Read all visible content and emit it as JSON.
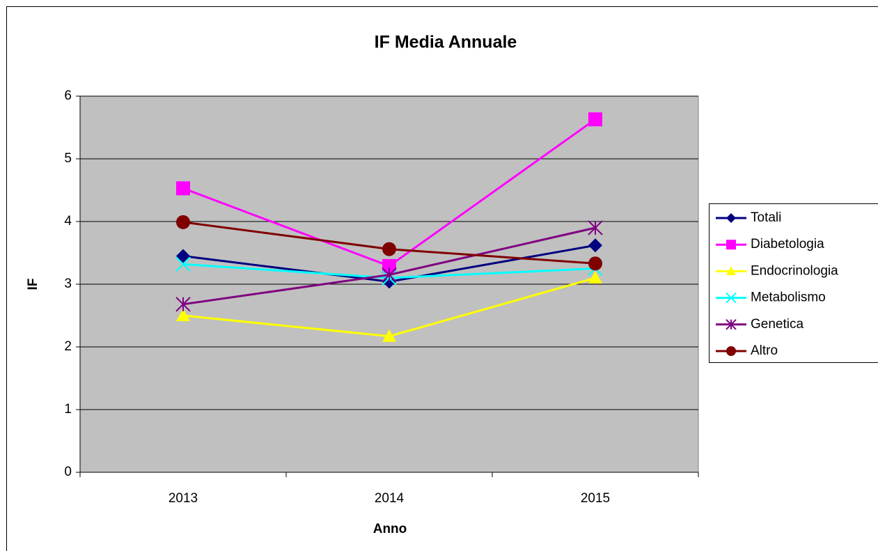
{
  "chart_data": {
    "type": "line",
    "title": "IF Media Annuale",
    "x_label": "Anno",
    "y_label": "IF",
    "categories": [
      "2013",
      "2014",
      "2015"
    ],
    "series": [
      {
        "name": "Totali",
        "color": "#000080",
        "marker": "diamond",
        "values": [
          3.45,
          3.04,
          3.62
        ]
      },
      {
        "name": "Diabetologia",
        "color": "#ff00ff",
        "marker": "square",
        "values": [
          4.53,
          3.29,
          5.63
        ]
      },
      {
        "name": "Endocrinologia",
        "color": "#ffff00",
        "marker": "triangle",
        "values": [
          2.5,
          2.17,
          3.1
        ]
      },
      {
        "name": "Metabolismo",
        "color": "#00ffff",
        "marker": "x",
        "values": [
          3.32,
          3.1,
          3.25
        ]
      },
      {
        "name": "Genetica",
        "color": "#800080",
        "marker": "asterisk",
        "values": [
          2.68,
          3.15,
          3.9
        ]
      },
      {
        "name": "Altro",
        "color": "#800000",
        "marker": "circle",
        "values": [
          3.99,
          3.56,
          3.33
        ]
      }
    ],
    "ylim": [
      0,
      6
    ],
    "yticks": [
      0,
      1,
      2,
      3,
      4,
      5,
      6
    ],
    "grid": true,
    "legend": "right"
  }
}
